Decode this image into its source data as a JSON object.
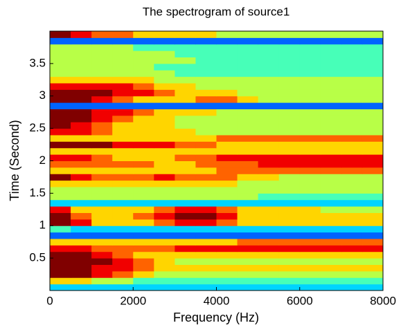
{
  "chart_data": {
    "type": "heatmap",
    "title": "The spectrogram of source1",
    "x_label": "Frequency (Hz)",
    "y_label": "Time (Second)",
    "colormap": "jet",
    "clim": [
      0,
      9
    ],
    "xlim": [
      0,
      8000
    ],
    "ylim": [
      0,
      4
    ],
    "xticks": [
      0,
      2000,
      4000,
      6000,
      8000
    ],
    "yticks": [
      0.5,
      1,
      1.5,
      2,
      2.5,
      3,
      3.5
    ],
    "xbins": [
      0,
      500,
      1000,
      1500,
      2000,
      2500,
      3000,
      3500,
      4000,
      4500,
      5000,
      5500,
      6000,
      6500,
      7000,
      7500,
      8000
    ],
    "ybins": [
      0,
      0.1,
      0.2,
      0.3,
      0.4,
      0.5,
      0.6,
      0.7,
      0.8,
      0.9,
      1,
      1.1,
      1.2,
      1.3,
      1.4,
      1.5,
      1.6,
      1.7,
      1.8,
      1.9,
      2,
      2.1,
      2.2,
      2.3,
      2.4,
      2.5,
      2.6,
      2.7,
      2.8,
      2.9,
      3,
      3.1,
      3.2,
      3.3,
      3.4,
      3.5,
      3.6,
      3.7,
      3.8,
      3.9,
      4
    ],
    "values": [
      [
        3,
        3,
        3,
        3,
        3,
        3,
        3,
        3,
        3,
        3,
        3,
        3,
        3,
        3,
        3,
        3
      ],
      [
        6,
        6,
        5,
        5,
        4,
        4,
        4,
        4,
        4,
        4,
        4,
        4,
        4,
        4,
        4,
        4
      ],
      [
        9,
        9,
        8,
        7,
        6,
        5,
        5,
        5,
        5,
        5,
        5,
        5,
        5,
        5,
        5,
        5
      ],
      [
        9,
        9,
        8,
        8,
        7,
        6,
        6,
        6,
        6,
        6,
        6,
        6,
        6,
        6,
        6,
        6
      ],
      [
        9,
        9,
        9,
        8,
        7,
        6,
        5,
        5,
        5,
        5,
        5,
        5,
        5,
        5,
        5,
        5
      ],
      [
        9,
        9,
        8,
        7,
        6,
        6,
        6,
        6,
        6,
        6,
        6,
        6,
        6,
        6,
        6,
        6
      ],
      [
        8,
        8,
        7,
        7,
        7,
        7,
        8,
        8,
        8,
        8,
        8,
        8,
        8,
        8,
        8,
        8
      ],
      [
        6,
        6,
        6,
        6,
        6,
        6,
        6,
        6,
        6,
        7,
        7,
        7,
        7,
        7,
        7,
        7
      ],
      [
        2,
        2,
        2,
        2,
        2,
        2,
        2,
        2,
        2,
        2,
        2,
        2,
        2,
        2,
        2,
        2
      ],
      [
        4,
        3,
        3,
        3,
        3,
        3,
        3,
        3,
        3,
        3,
        3,
        3,
        3,
        3,
        3,
        3
      ],
      [
        9,
        8,
        6,
        6,
        6,
        7,
        8,
        8,
        7,
        6,
        6,
        6,
        6,
        6,
        6,
        6
      ],
      [
        9,
        7,
        6,
        6,
        7,
        8,
        9,
        9,
        8,
        6,
        6,
        6,
        6,
        6,
        6,
        6
      ],
      [
        8,
        6,
        6,
        6,
        6,
        7,
        8,
        8,
        7,
        6,
        6,
        6,
        6,
        5,
        5,
        5
      ],
      [
        3,
        3,
        3,
        3,
        3,
        3,
        3,
        3,
        3,
        3,
        3,
        3,
        3,
        3,
        3,
        3
      ],
      [
        5,
        5,
        5,
        5,
        5,
        5,
        5,
        5,
        5,
        5,
        4,
        4,
        4,
        4,
        4,
        4
      ],
      [
        5,
        5,
        5,
        5,
        5,
        5,
        5,
        5,
        5,
        5,
        5,
        5,
        5,
        5,
        5,
        5
      ],
      [
        6,
        6,
        6,
        6,
        6,
        6,
        6,
        6,
        6,
        5,
        5,
        5,
        5,
        5,
        5,
        5
      ],
      [
        9,
        8,
        7,
        7,
        7,
        8,
        7,
        7,
        7,
        6,
        6,
        5,
        5,
        5,
        5,
        5
      ],
      [
        6,
        6,
        6,
        6,
        6,
        6,
        6,
        6,
        7,
        7,
        7,
        7,
        7,
        7,
        7,
        7
      ],
      [
        7,
        7,
        7,
        7,
        7,
        6,
        6,
        7,
        7,
        7,
        8,
        8,
        8,
        8,
        8,
        8
      ],
      [
        8,
        8,
        7,
        6,
        6,
        6,
        7,
        7,
        8,
        8,
        8,
        8,
        8,
        8,
        8,
        8
      ],
      [
        6,
        6,
        6,
        6,
        6,
        6,
        6,
        6,
        6,
        6,
        6,
        6,
        6,
        6,
        6,
        6
      ],
      [
        9,
        9,
        9,
        8,
        8,
        8,
        7,
        7,
        6,
        6,
        6,
        6,
        6,
        6,
        6,
        6
      ],
      [
        6,
        6,
        6,
        6,
        6,
        6,
        6,
        6,
        7,
        7,
        7,
        7,
        7,
        7,
        7,
        7
      ],
      [
        8,
        8,
        7,
        6,
        6,
        6,
        6,
        5,
        5,
        5,
        5,
        5,
        5,
        5,
        5,
        5
      ],
      [
        9,
        8,
        7,
        6,
        6,
        6,
        5,
        5,
        5,
        5,
        5,
        5,
        5,
        5,
        5,
        5
      ],
      [
        9,
        9,
        8,
        7,
        6,
        6,
        5,
        5,
        5,
        5,
        5,
        5,
        5,
        5,
        5,
        5
      ],
      [
        9,
        9,
        8,
        8,
        7,
        6,
        6,
        6,
        5,
        5,
        5,
        5,
        5,
        5,
        5,
        5
      ],
      [
        2,
        2,
        2,
        2,
        2,
        2,
        2,
        2,
        2,
        2,
        2,
        2,
        2,
        2,
        2,
        2
      ],
      [
        9,
        9,
        8,
        7,
        6,
        6,
        6,
        7,
        7,
        6,
        5,
        5,
        5,
        5,
        5,
        5
      ],
      [
        9,
        9,
        9,
        8,
        8,
        7,
        6,
        6,
        6,
        5,
        5,
        5,
        5,
        5,
        5,
        5
      ],
      [
        8,
        8,
        8,
        8,
        7,
        6,
        6,
        5,
        5,
        5,
        5,
        5,
        5,
        5,
        5,
        5
      ],
      [
        6,
        6,
        6,
        6,
        6,
        5,
        5,
        5,
        5,
        5,
        5,
        5,
        5,
        5,
        5,
        5
      ],
      [
        5,
        5,
        5,
        5,
        5,
        5,
        4,
        4,
        4,
        4,
        4,
        4,
        4,
        4,
        4,
        4
      ],
      [
        5,
        5,
        5,
        5,
        5,
        4,
        4,
        4,
        4,
        4,
        4,
        4,
        4,
        4,
        4,
        4
      ],
      [
        5,
        5,
        5,
        5,
        5,
        5,
        5,
        4,
        4,
        4,
        4,
        4,
        4,
        4,
        4,
        4
      ],
      [
        5,
        5,
        5,
        5,
        5,
        5,
        4,
        4,
        4,
        4,
        4,
        4,
        4,
        4,
        4,
        4
      ],
      [
        5,
        5,
        5,
        5,
        4,
        4,
        4,
        4,
        4,
        4,
        4,
        4,
        4,
        4,
        4,
        4
      ],
      [
        2,
        2,
        2,
        2,
        2,
        2,
        2,
        2,
        2,
        2,
        2,
        2,
        2,
        2,
        2,
        2
      ],
      [
        9,
        8,
        7,
        7,
        6,
        6,
        6,
        6,
        5,
        5,
        5,
        5,
        5,
        5,
        5,
        5
      ]
    ]
  }
}
